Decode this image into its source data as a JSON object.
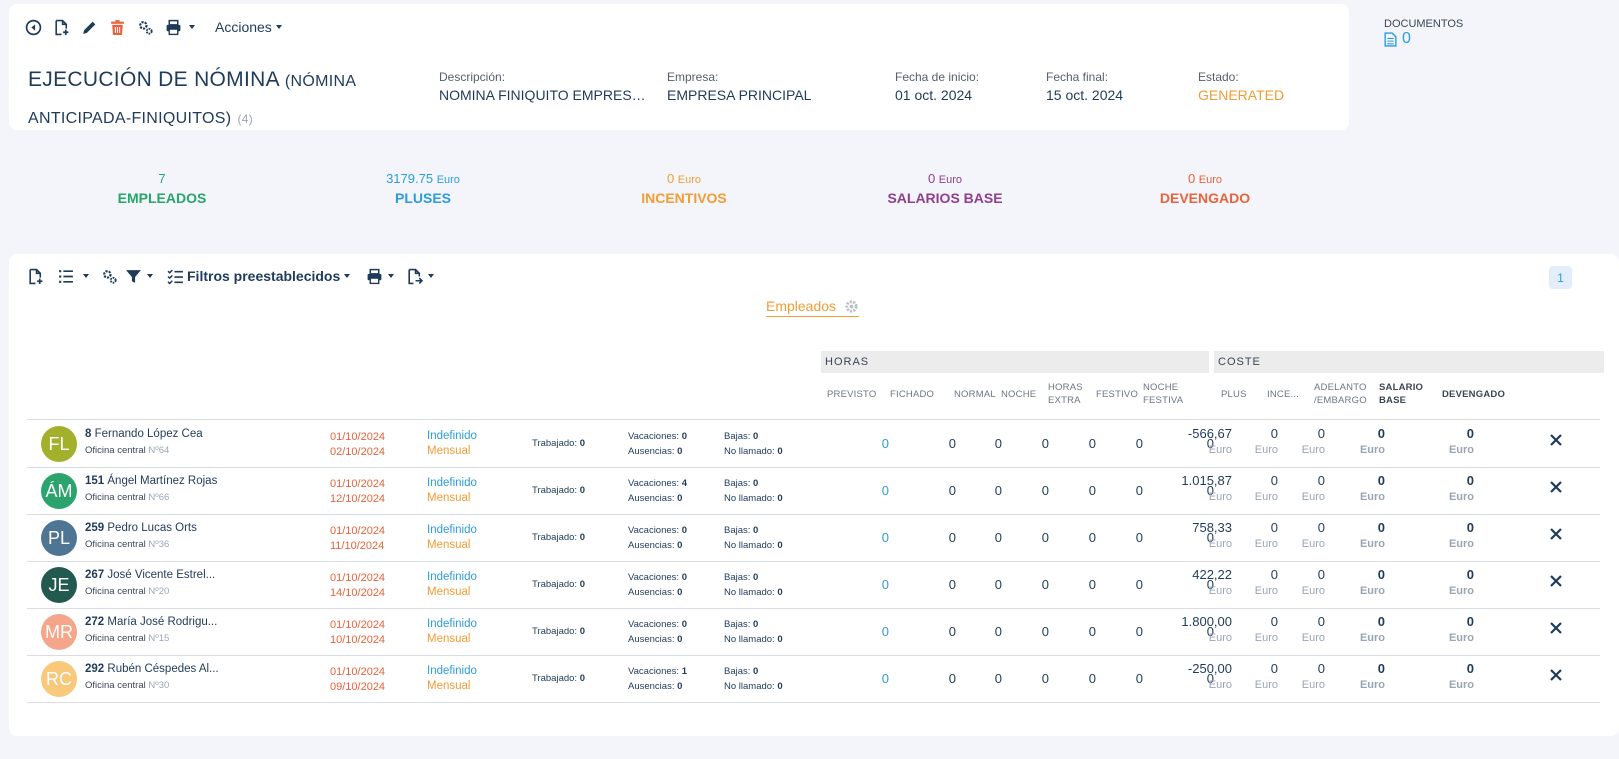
{
  "toolbar": {
    "icons": [
      "back-circle-icon",
      "new-document-icon",
      "pencil-icon",
      "trash-icon",
      "gears-icon",
      "printer-icon"
    ],
    "acciones_label": "Acciones"
  },
  "header": {
    "title": "EJECUCIÓN DE NÓMINA",
    "subtitle_open": "(NÓMINA",
    "subtitle_rest": "ANTICIPADA-FINIQUITOS)",
    "count": "(4)",
    "fields": [
      {
        "label": "Descripción:",
        "value": "NOMINA FINIQUITO EMPRESA PRINCIPAL"
      },
      {
        "label": "Empresa:",
        "value": "EMPRESA PRINCIPAL"
      },
      {
        "label": "Fecha de inicio:",
        "value": "01 oct. 2024"
      },
      {
        "label": "Fecha final:",
        "value": "15 oct. 2024"
      },
      {
        "label": "Estado:",
        "value": "GENERATED"
      }
    ],
    "estado_color": "#f39c34"
  },
  "documents": {
    "count": "0",
    "label": "DOCUMENTOS"
  },
  "stats": [
    {
      "value": "7",
      "unit": "",
      "label": "EMPLEADOS",
      "color": "#27a56a"
    },
    {
      "value": "3179.75",
      "unit": "Euro",
      "label": "PLUSES",
      "color": "#2d9cdb"
    },
    {
      "value": "0",
      "unit": "Euro",
      "label": "INCENTIVOS",
      "color": "#f39c34"
    },
    {
      "value": "0",
      "unit": "Euro",
      "label": "SALARIOS BASE",
      "color": "#8e3f8e"
    },
    {
      "value": "0",
      "unit": "Euro",
      "label": "DEVENGADO",
      "color": "#e8623a"
    }
  ],
  "list": {
    "filters_label": "Filtros preestablecidos",
    "page": "1",
    "tab_label": "Empleados",
    "groups": {
      "horas": "HORAS",
      "coste": "COSTE"
    },
    "horas_columns": [
      "PREVISTO",
      "FICHADO",
      "NORMAL",
      "NOCHE",
      "HORAS EXTRA",
      "FESTIVO",
      "NOCHE FESTIVA"
    ],
    "coste_columns": [
      "PLUS",
      "INCE...",
      "ADELANTO /EMBARGO",
      "SALARIO BASE",
      "DEVENGADO"
    ],
    "labels": {
      "trabajado": "Trabajado:",
      "vacaciones": "Vacaciones:",
      "ausencias": "Ausencias:",
      "bajas": "Bajas:",
      "no_llamado": "No llamado:",
      "euro": "Euro",
      "office": "Oficina central"
    },
    "rows": [
      {
        "initials": "FL",
        "color": "#a3b02c",
        "id": "8",
        "name": "Fernando López Cea",
        "office_no": "Nº64",
        "start": "01/10/2024",
        "end": "02/10/2024",
        "contract": "Indefinido",
        "period": "Mensual",
        "trabajado": "0",
        "vacaciones": "0",
        "ausencias": "0",
        "bajas": "0",
        "no_llamado": "0",
        "hours": [
          "0",
          "0",
          "0",
          "0",
          "0",
          "0",
          "0"
        ],
        "plus": "-566,67",
        "ince": "0",
        "adelanto": "0",
        "salario": "0",
        "devengado": "0"
      },
      {
        "initials": "ÁM",
        "color": "#2aa36d",
        "id": "151",
        "name": "Ángel Martínez Rojas",
        "office_no": "Nº66",
        "start": "01/10/2024",
        "end": "12/10/2024",
        "contract": "Indefinido",
        "period": "Mensual",
        "trabajado": "0",
        "vacaciones": "4",
        "ausencias": "0",
        "bajas": "0",
        "no_llamado": "0",
        "hours": [
          "0",
          "0",
          "0",
          "0",
          "0",
          "0",
          "0"
        ],
        "plus": "1.015,87",
        "ince": "0",
        "adelanto": "0",
        "salario": "0",
        "devengado": "0"
      },
      {
        "initials": "PL",
        "color": "#4f7595",
        "id": "259",
        "name": "Pedro Lucas Orts",
        "office_no": "Nº36",
        "start": "01/10/2024",
        "end": "11/10/2024",
        "contract": "Indefinido",
        "period": "Mensual",
        "trabajado": "0",
        "vacaciones": "0",
        "ausencias": "0",
        "bajas": "0",
        "no_llamado": "0",
        "hours": [
          "0",
          "0",
          "0",
          "0",
          "0",
          "0",
          "0"
        ],
        "plus": "758,33",
        "ince": "0",
        "adelanto": "0",
        "salario": "0",
        "devengado": "0"
      },
      {
        "initials": "JE",
        "color": "#235a4f",
        "id": "267",
        "name": "José Vicente Estrel...",
        "office_no": "Nº20",
        "start": "01/10/2024",
        "end": "14/10/2024",
        "contract": "Indefinido",
        "period": "Mensual",
        "trabajado": "0",
        "vacaciones": "0",
        "ausencias": "0",
        "bajas": "0",
        "no_llamado": "0",
        "hours": [
          "0",
          "0",
          "0",
          "0",
          "0",
          "0",
          "0"
        ],
        "plus": "422,22",
        "ince": "0",
        "adelanto": "0",
        "salario": "0",
        "devengado": "0"
      },
      {
        "initials": "MR",
        "color": "#f5a58a",
        "id": "272",
        "name": "María José Rodrigu...",
        "office_no": "Nº15",
        "start": "01/10/2024",
        "end": "10/10/2024",
        "contract": "Indefinido",
        "period": "Mensual",
        "trabajado": "0",
        "vacaciones": "0",
        "ausencias": "0",
        "bajas": "0",
        "no_llamado": "0",
        "hours": [
          "0",
          "0",
          "0",
          "0",
          "0",
          "0",
          "0"
        ],
        "plus": "1.800,00",
        "ince": "0",
        "adelanto": "0",
        "salario": "0",
        "devengado": "0"
      },
      {
        "initials": "RC",
        "color": "#f8c97a",
        "id": "292",
        "name": "Rubén Céspedes Al...",
        "office_no": "Nº30",
        "start": "01/10/2024",
        "end": "09/10/2024",
        "contract": "Indefinido",
        "period": "Mensual",
        "trabajado": "0",
        "vacaciones": "1",
        "ausencias": "0",
        "bajas": "0",
        "no_llamado": "0",
        "hours": [
          "0",
          "0",
          "0",
          "0",
          "0",
          "0",
          "0"
        ],
        "plus": "-250,00",
        "ince": "0",
        "adelanto": "0",
        "salario": "0",
        "devengado": "0"
      }
    ]
  }
}
